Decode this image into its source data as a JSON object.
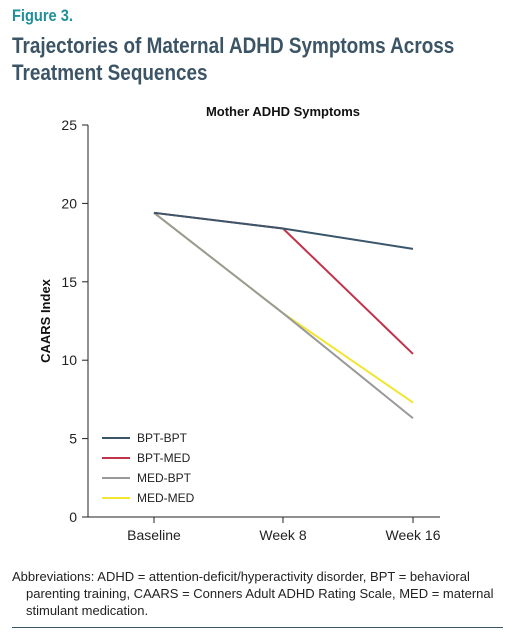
{
  "figure_label": "Figure 3.",
  "title": "Trajectories of Maternal ADHD Symptoms Across Treatment Sequences",
  "footnote": {
    "line1": "Abbreviations: ADHD = attention-deficit/hyperactivity disorder, BPT = behavioral",
    "line2": "parenting training, CAARS = Conners Adult ADHD Rating Scale, MED = maternal",
    "line3": "stimulant medication."
  },
  "colors": {
    "label": "#1f8f9a",
    "title": "#3c5566",
    "BPT-BPT": "#3a566b",
    "BPT-MED": "#c2334a",
    "MED-BPT": "#999999",
    "MED-MED": "#f2e531"
  },
  "chart_data": {
    "type": "line",
    "title": "Mother ADHD Symptoms",
    "xlabel": "",
    "ylabel": "CAARS Index",
    "categories": [
      "Baseline",
      "Week 8",
      "Week 16"
    ],
    "ylim": [
      0,
      25
    ],
    "yticks": [
      0,
      5,
      10,
      15,
      20,
      25
    ],
    "grid": false,
    "legend_position": "bottom-left",
    "series": [
      {
        "name": "BPT-BPT",
        "values": [
          19.4,
          18.4,
          17.1
        ]
      },
      {
        "name": "BPT-MED",
        "values": [
          19.4,
          18.4,
          10.4
        ]
      },
      {
        "name": "MED-BPT",
        "values": [
          19.4,
          13.0,
          6.3
        ]
      },
      {
        "name": "MED-MED",
        "values": [
          19.4,
          13.0,
          7.3
        ]
      }
    ]
  }
}
